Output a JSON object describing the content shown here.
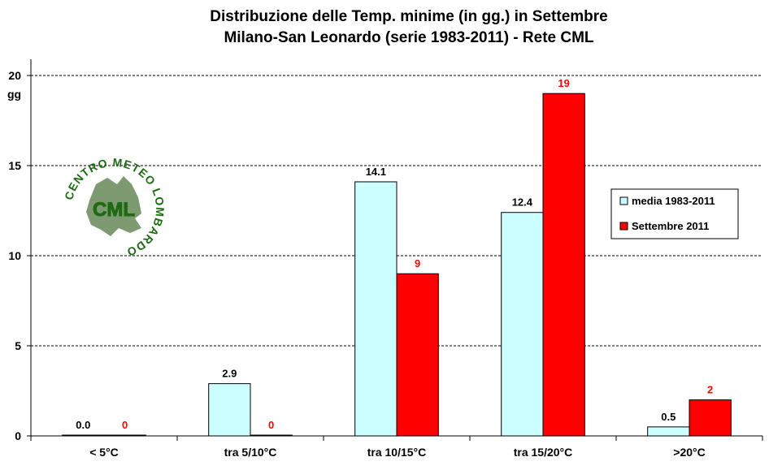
{
  "chart_data": {
    "type": "bar",
    "title": "Distribuzione  delle  Temp.  minime  (in  gg.)  in  Settembre",
    "subtitle": "Milano-San  Leonardo  (serie  1983-2011)  - Rete  CML",
    "ylabel": "gg",
    "xlabel": "",
    "ylim": [
      0,
      20
    ],
    "yticks": [
      0,
      5,
      10,
      15,
      20
    ],
    "grid": true,
    "legend_position": "right",
    "categories": [
      "< 5°C",
      "tra 5/10°C",
      "tra 10/15°C",
      "tra 15/20°C",
      ">20°C"
    ],
    "series": [
      {
        "name": "media 1983-2011",
        "values": [
          0.0,
          2.9,
          14.1,
          12.4,
          0.5
        ],
        "labels": [
          "0.0",
          "2.9",
          "14.1",
          "12.4",
          "0.5"
        ],
        "color": "#ccffff",
        "label_color": "#000000"
      },
      {
        "name": "Settembre 2011",
        "values": [
          0,
          0,
          9,
          19,
          2
        ],
        "labels": [
          "0",
          "0",
          "9",
          "19",
          "2"
        ],
        "color": "#ff0000",
        "label_color": "#ff0000"
      }
    ]
  },
  "logo": {
    "ring_text": "CENTRO METEO LOMBARDO",
    "center_text": "CML",
    "color": "#1e6b14"
  }
}
